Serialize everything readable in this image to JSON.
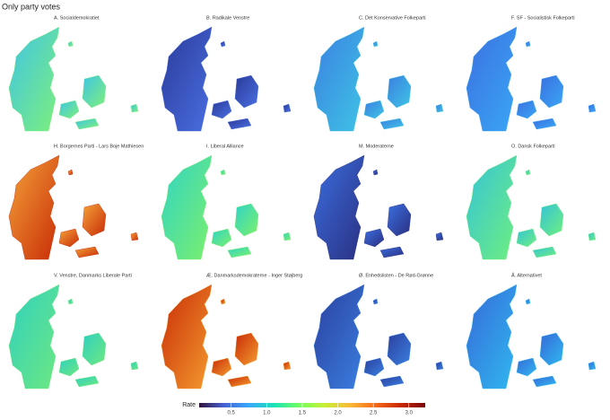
{
  "title": "Only party votes",
  "panels": [
    {
      "title": "A. Socialdemokratiet"
    },
    {
      "title": "B. Radikale Venstre"
    },
    {
      "title": "C. Det Konservative Folkeparti"
    },
    {
      "title": "F. SF - Socialistisk Folkeparti"
    },
    {
      "title": "H. Borgernes Parti - Lars Boje Mathiesen"
    },
    {
      "title": "I. Liberal Alliance"
    },
    {
      "title": "M. Moderaterne"
    },
    {
      "title": "O. Dansk Folkeparti"
    },
    {
      "title": "V. Venstre, Danmarks Liberale Parti"
    },
    {
      "title": "Æ. Danmarksdemokraterne - Inger Støjberg"
    },
    {
      "title": "Ø. Enhedslisten - De Rød-Grønne"
    },
    {
      "title": "Å. Alternativet"
    }
  ],
  "legend": {
    "title": "Rate",
    "range": [
      0.05,
      3.23
    ],
    "ticks": [
      0.5,
      {
        "value": 1.0,
        "label": "1.0"
      },
      1.5,
      {
        "value": 2.0,
        "label": "2.0"
      },
      2.5,
      {
        "value": 3.0,
        "label": "3.0"
      }
    ],
    "colors": [
      "#30123b",
      "#4662d7",
      "#36aaf9",
      "#1ae4b6",
      "#72fe5e",
      "#c8ef34",
      "#faba39",
      "#f66b19",
      "#ca2a04",
      "#7a0403"
    ]
  }
}
